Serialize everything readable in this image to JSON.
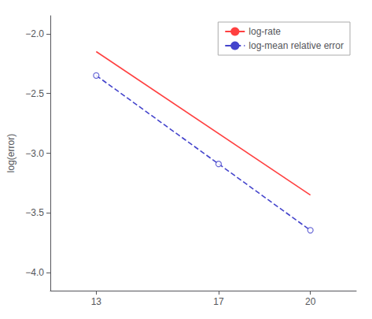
{
  "chart_data": {
    "type": "line",
    "ylabel": "log(error)",
    "xlim": [
      11.5,
      21.5
    ],
    "xticks": [
      13,
      17,
      20
    ],
    "ylim": [
      -4.15,
      -1.85
    ],
    "yticks": [
      {
        "value": -4.0,
        "label": "−4.0"
      },
      {
        "value": -3.5,
        "label": "−3.5"
      },
      {
        "value": -3.0,
        "label": "−3.0"
      },
      {
        "value": -2.5,
        "label": "−2.5"
      },
      {
        "value": -2.0,
        "label": "−2.0"
      }
    ],
    "grid": false,
    "legend": "upper right",
    "series": [
      {
        "name": "log-rate",
        "color": "#FF4040",
        "line_style": "solid",
        "x": [
          13,
          20
        ],
        "values": [
          -2.15,
          -3.35
        ]
      },
      {
        "name": "log-mean relative error",
        "color": "#4444CC",
        "line_style": "dashed",
        "x": [
          13,
          14,
          15,
          16,
          17,
          18,
          19,
          20
        ],
        "values": [
          -2.35,
          -2.535,
          -2.72,
          -2.905,
          -3.09,
          -3.275,
          -3.46,
          -3.645
        ]
      },
      {
        "type": "scatter",
        "color": "#4444CC",
        "marker": "circle",
        "x": [
          13,
          17,
          20
        ],
        "values": [
          -2.35,
          -3.09,
          -3.645
        ]
      }
    ]
  }
}
